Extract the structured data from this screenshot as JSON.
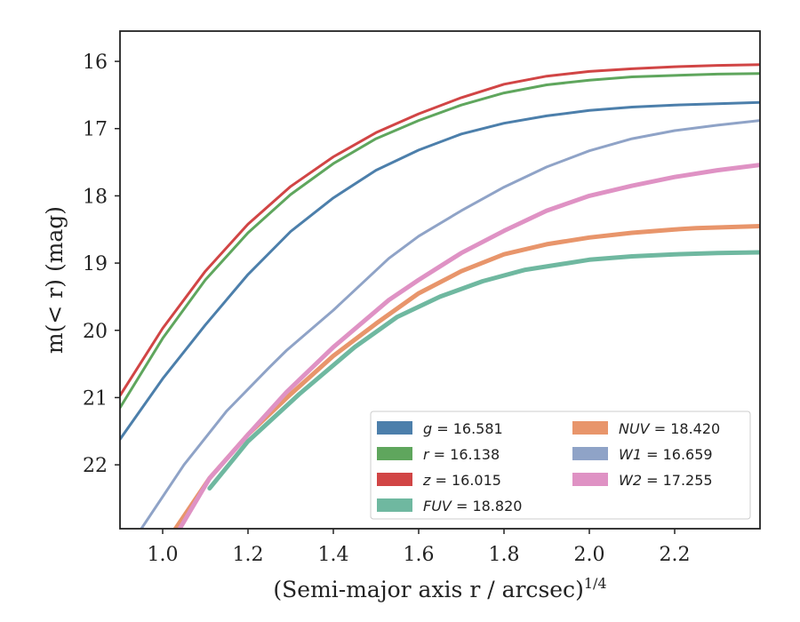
{
  "chart_data": {
    "type": "line",
    "title": "",
    "xlabel": "(Semi-major axis r / arcsec)",
    "xlabel_italic_var": "r",
    "xlabel_sup": "1/4",
    "ylabel": "m(< r) (mag)",
    "xlim": [
      0.9,
      2.4
    ],
    "ylim": [
      22.95,
      15.55
    ],
    "y_inverted": true,
    "xticks": [
      "1.0",
      "1.2",
      "1.4",
      "1.6",
      "1.8",
      "2.0",
      "2.2"
    ],
    "xtick_values": [
      1.0,
      1.2,
      1.4,
      1.6,
      1.8,
      2.0,
      2.2
    ],
    "yticks": [
      "16",
      "17",
      "18",
      "19",
      "20",
      "21",
      "22"
    ],
    "ytick_values": [
      16,
      17,
      18,
      19,
      20,
      21,
      22
    ],
    "grid": false,
    "legend_position": "lower-right",
    "series": [
      {
        "name": "g",
        "label": "g = 16.581",
        "color": "#4c7fab",
        "x": [
          0.9,
          1.0,
          1.1,
          1.2,
          1.3,
          1.4,
          1.5,
          1.6,
          1.7,
          1.8,
          1.9,
          2.0,
          2.1,
          2.2,
          2.3,
          2.4
        ],
        "y": [
          21.62,
          20.72,
          19.92,
          19.17,
          18.53,
          18.03,
          17.62,
          17.32,
          17.08,
          16.92,
          16.81,
          16.73,
          16.68,
          16.65,
          16.63,
          16.61
        ]
      },
      {
        "name": "r",
        "label": "r = 16.138",
        "color": "#5fa65d",
        "x": [
          0.9,
          1.0,
          1.1,
          1.2,
          1.3,
          1.4,
          1.5,
          1.6,
          1.7,
          1.8,
          1.9,
          2.0,
          2.1,
          2.2,
          2.3,
          2.4
        ],
        "y": [
          21.15,
          20.12,
          19.25,
          18.55,
          17.98,
          17.52,
          17.15,
          16.88,
          16.65,
          16.47,
          16.35,
          16.28,
          16.23,
          16.21,
          16.19,
          16.18
        ]
      },
      {
        "name": "z",
        "label": "z = 16.015",
        "color": "#d14545",
        "x": [
          0.9,
          1.0,
          1.1,
          1.2,
          1.3,
          1.4,
          1.5,
          1.6,
          1.7,
          1.8,
          1.9,
          2.0,
          2.1,
          2.2,
          2.3,
          2.4
        ],
        "y": [
          20.97,
          19.97,
          19.12,
          18.42,
          17.86,
          17.42,
          17.06,
          16.78,
          16.54,
          16.34,
          16.22,
          16.15,
          16.11,
          16.08,
          16.06,
          16.05
        ]
      },
      {
        "name": "FUV",
        "label": "FUV = 18.820",
        "color": "#6fb8a0",
        "x": [
          1.11,
          1.2,
          1.32,
          1.45,
          1.55,
          1.65,
          1.75,
          1.85,
          1.95,
          2.0,
          2.1,
          2.2,
          2.3,
          2.4
        ],
        "y": [
          22.35,
          21.65,
          20.95,
          20.25,
          19.8,
          19.5,
          19.27,
          19.1,
          19.0,
          18.95,
          18.9,
          18.87,
          18.85,
          18.84
        ]
      },
      {
        "name": "NUV",
        "label": "NUV = 18.420",
        "color": "#e8956b",
        "x": [
          1.03,
          1.11,
          1.2,
          1.3,
          1.4,
          1.5,
          1.6,
          1.7,
          1.8,
          1.9,
          2.0,
          2.1,
          2.2,
          2.25,
          2.4
        ],
        "y": [
          22.95,
          22.2,
          21.55,
          20.95,
          20.38,
          19.9,
          19.45,
          19.12,
          18.87,
          18.72,
          18.62,
          18.55,
          18.5,
          18.48,
          18.45
        ]
      },
      {
        "name": "W1",
        "label": "W1 = 16.659",
        "color": "#8fa3c7",
        "x": [
          0.95,
          1.05,
          1.15,
          1.25,
          1.29,
          1.4,
          1.53,
          1.6,
          1.7,
          1.8,
          1.9,
          2.0,
          2.1,
          2.2,
          2.3,
          2.4
        ],
        "y": [
          22.95,
          22.0,
          21.2,
          20.55,
          20.3,
          19.7,
          18.93,
          18.6,
          18.22,
          17.87,
          17.57,
          17.33,
          17.15,
          17.03,
          16.95,
          16.88
        ]
      },
      {
        "name": "W2",
        "label": "W2 = 17.255",
        "color": "#df92c4",
        "x": [
          1.04,
          1.11,
          1.2,
          1.29,
          1.4,
          1.53,
          1.6,
          1.7,
          1.8,
          1.9,
          2.0,
          2.1,
          2.2,
          2.3,
          2.4
        ],
        "y": [
          22.95,
          22.2,
          21.55,
          20.92,
          20.25,
          19.55,
          19.25,
          18.85,
          18.52,
          18.22,
          18.0,
          17.85,
          17.72,
          17.62,
          17.54
        ]
      }
    ]
  }
}
